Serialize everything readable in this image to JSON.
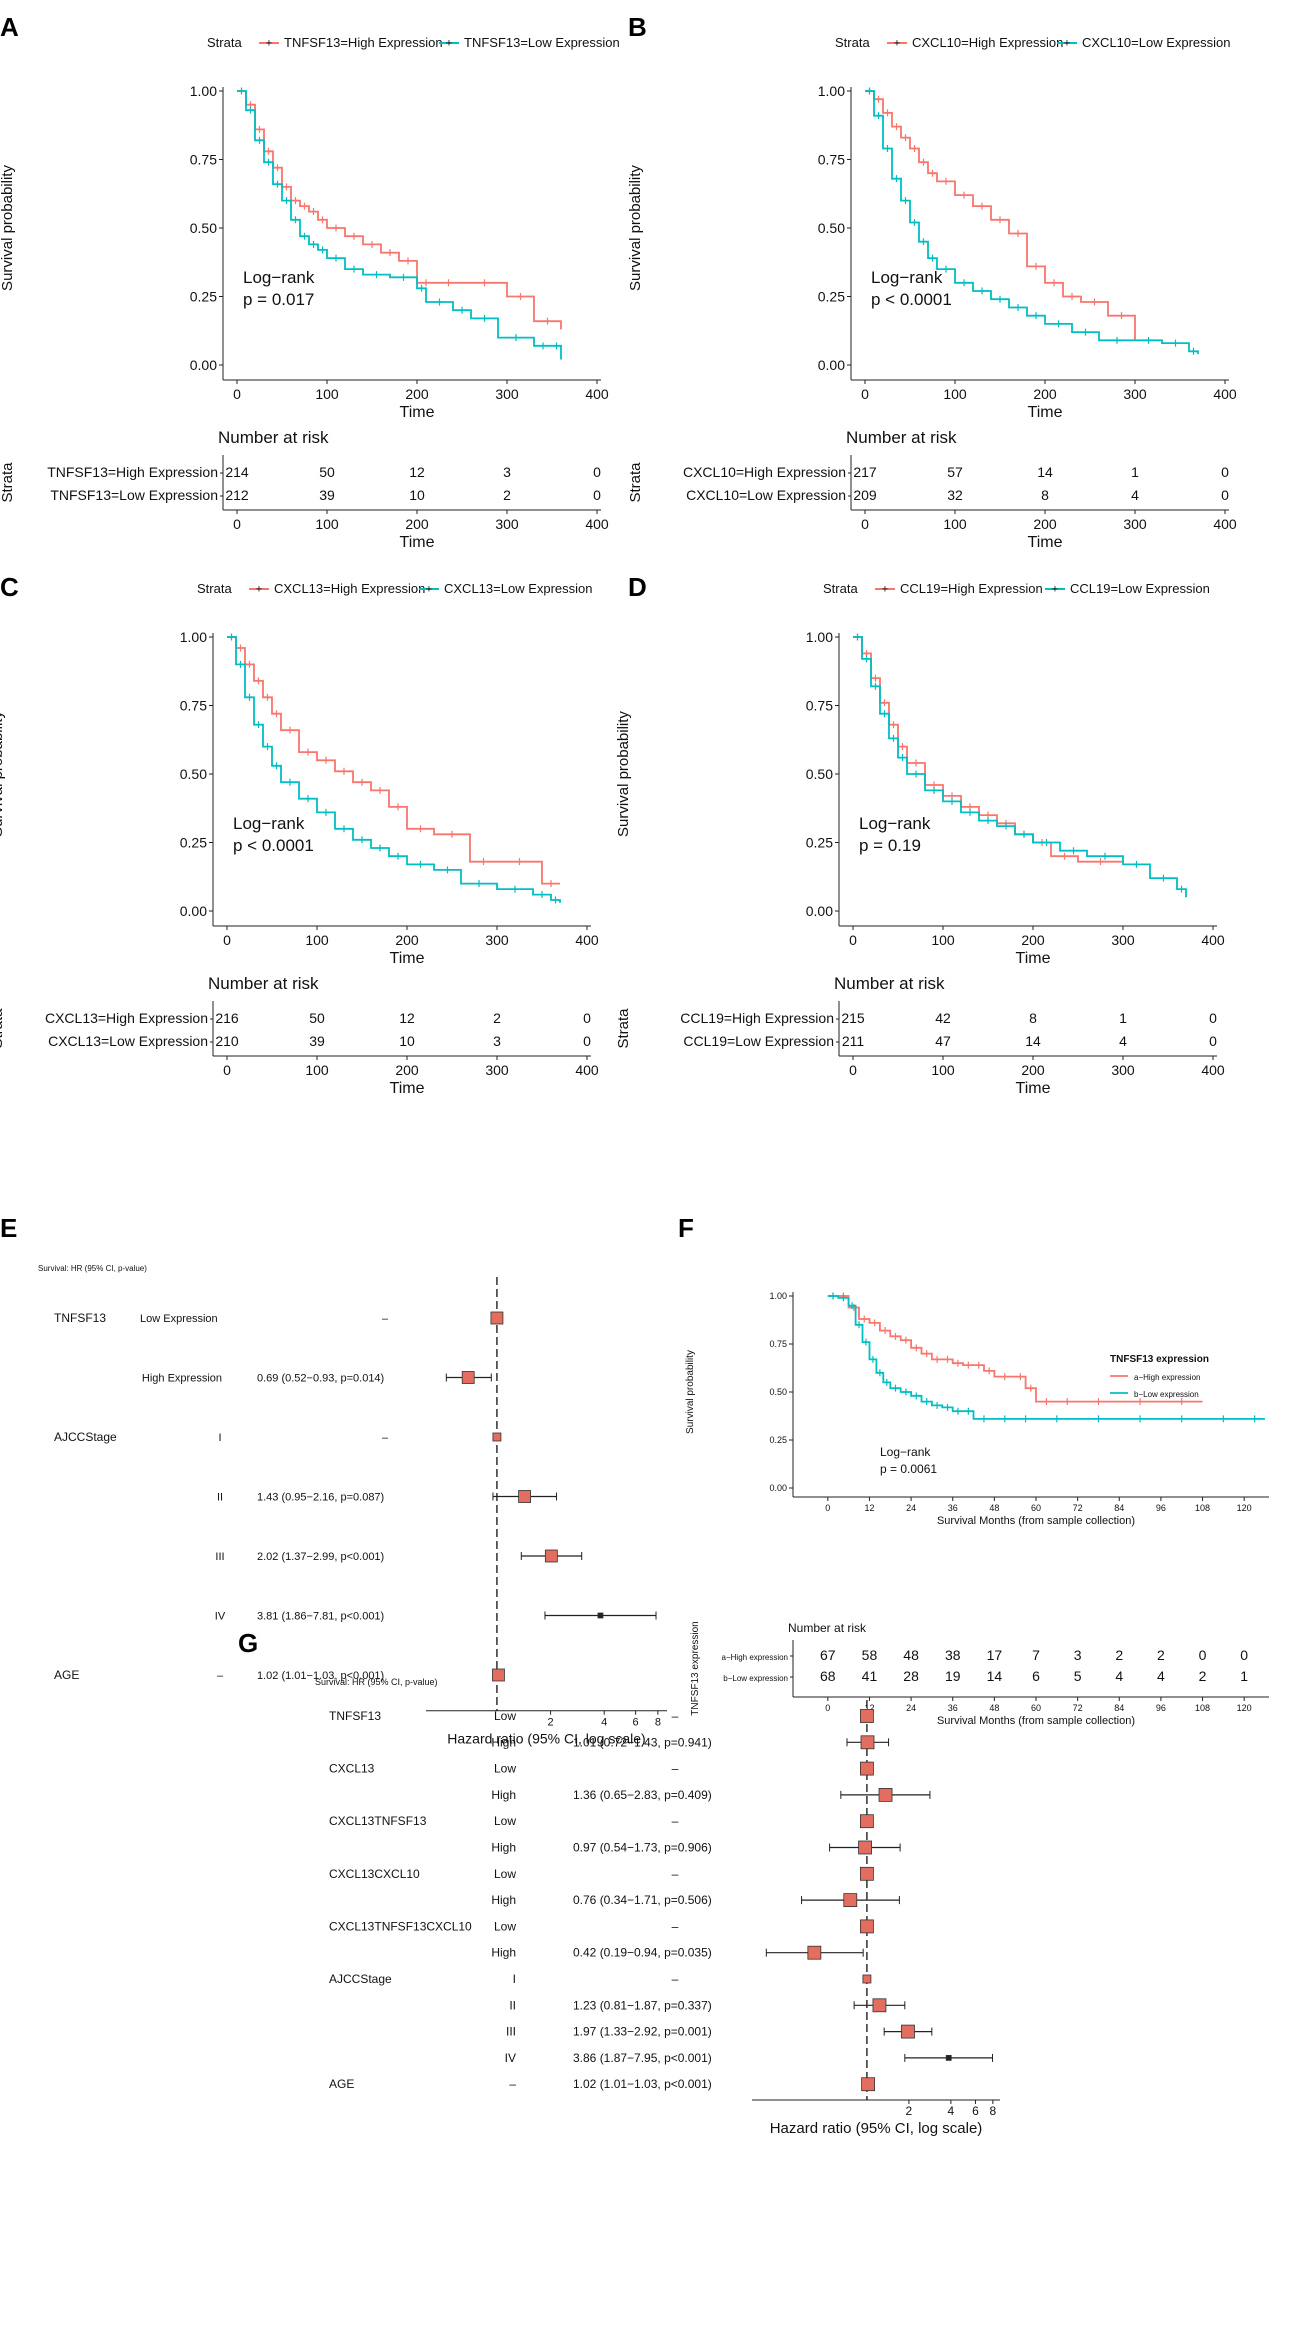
{
  "colors": {
    "high": "#F8766D",
    "low": "#00BFC4",
    "box": "#E36D5F"
  },
  "panel_labels": [
    "A",
    "B",
    "C",
    "D",
    "E",
    "F",
    "G"
  ],
  "chart_data": [
    {
      "panel": "A",
      "type": "line",
      "legend_title": "Strata",
      "series": [
        {
          "name": "TNFSF13=High Expression",
          "color": "#F8766D",
          "x": [
            0,
            10,
            20,
            30,
            40,
            50,
            60,
            70,
            80,
            90,
            100,
            120,
            140,
            160,
            180,
            200,
            220,
            250,
            300,
            330,
            360
          ],
          "y": [
            1.0,
            0.95,
            0.86,
            0.78,
            0.72,
            0.65,
            0.6,
            0.58,
            0.56,
            0.53,
            0.5,
            0.47,
            0.44,
            0.41,
            0.38,
            0.3,
            0.3,
            0.3,
            0.25,
            0.16,
            0.13
          ]
        },
        {
          "name": "TNFSF13=Low Expression",
          "color": "#00BFC4",
          "x": [
            0,
            10,
            20,
            30,
            40,
            50,
            60,
            70,
            80,
            90,
            100,
            120,
            140,
            170,
            200,
            210,
            240,
            260,
            290,
            330,
            350,
            360
          ],
          "y": [
            1.0,
            0.93,
            0.82,
            0.74,
            0.66,
            0.6,
            0.53,
            0.47,
            0.44,
            0.42,
            0.39,
            0.35,
            0.33,
            0.32,
            0.28,
            0.23,
            0.2,
            0.17,
            0.1,
            0.07,
            0.07,
            0.02
          ]
        }
      ],
      "xlabel": "Time",
      "ylabel": "Survival probability",
      "xlim": [
        0,
        400
      ],
      "ylim": [
        0,
        1
      ],
      "xticks": [
        "0",
        "100",
        "200",
        "300",
        "400"
      ],
      "yticks": [
        "0.00",
        "0.25",
        "0.50",
        "0.75",
        "1.00"
      ],
      "annotation": [
        "Log−rank",
        "p = 0.017"
      ],
      "risk_table": {
        "title": "Number at risk",
        "ylabel": "Strata",
        "rows": [
          {
            "label": "TNFSF13=High  Expression",
            "values": [
              "214",
              "50",
              "12",
              "3",
              "0"
            ]
          },
          {
            "label": "TNFSF13=Low  Expression",
            "values": [
              "212",
              "39",
              "10",
              "2",
              "0"
            ]
          }
        ]
      }
    },
    {
      "panel": "B",
      "type": "line",
      "legend_title": "Strata",
      "series": [
        {
          "name": "CXCL10=High Expression",
          "color": "#F8766D",
          "x": [
            0,
            10,
            20,
            30,
            40,
            50,
            60,
            70,
            80,
            100,
            120,
            140,
            160,
            180,
            200,
            220,
            240,
            270,
            300
          ],
          "y": [
            1.0,
            0.97,
            0.92,
            0.87,
            0.83,
            0.79,
            0.74,
            0.7,
            0.67,
            0.62,
            0.58,
            0.53,
            0.48,
            0.36,
            0.3,
            0.25,
            0.23,
            0.18,
            0.09
          ]
        },
        {
          "name": "CXCL10=Low Expression",
          "color": "#00BFC4",
          "x": [
            0,
            10,
            20,
            30,
            40,
            50,
            60,
            70,
            80,
            100,
            120,
            140,
            160,
            180,
            200,
            230,
            260,
            300,
            330,
            360,
            370
          ],
          "y": [
            1.0,
            0.91,
            0.79,
            0.68,
            0.6,
            0.52,
            0.45,
            0.39,
            0.35,
            0.3,
            0.27,
            0.24,
            0.21,
            0.18,
            0.15,
            0.12,
            0.09,
            0.09,
            0.08,
            0.05,
            0.04
          ]
        }
      ],
      "xlabel": "Time",
      "ylabel": "Survival probability",
      "xlim": [
        0,
        400
      ],
      "ylim": [
        0,
        1
      ],
      "xticks": [
        "0",
        "100",
        "200",
        "300",
        "400"
      ],
      "yticks": [
        "0.00",
        "0.25",
        "0.50",
        "0.75",
        "1.00"
      ],
      "annotation": [
        "Log−rank",
        "p < 0.0001"
      ],
      "risk_table": {
        "title": "Number at risk",
        "ylabel": "Strata",
        "rows": [
          {
            "label": "CXCL10=High  Expression",
            "values": [
              "217",
              "57",
              "14",
              "1",
              "0"
            ]
          },
          {
            "label": "CXCL10=Low  Expression",
            "values": [
              "209",
              "32",
              "8",
              "4",
              "0"
            ]
          }
        ]
      }
    },
    {
      "panel": "C",
      "type": "line",
      "legend_title": "Strata",
      "series": [
        {
          "name": "CXCL13=High Expression",
          "color": "#F8766D",
          "x": [
            0,
            10,
            20,
            30,
            40,
            50,
            60,
            80,
            100,
            120,
            140,
            160,
            180,
            200,
            230,
            270,
            300,
            350,
            370
          ],
          "y": [
            1.0,
            0.96,
            0.9,
            0.84,
            0.78,
            0.72,
            0.66,
            0.58,
            0.55,
            0.51,
            0.47,
            0.44,
            0.38,
            0.3,
            0.28,
            0.18,
            0.18,
            0.1,
            0.1
          ]
        },
        {
          "name": "CXCL13=Low Expression",
          "color": "#00BFC4",
          "x": [
            0,
            10,
            20,
            30,
            40,
            50,
            60,
            80,
            100,
            120,
            140,
            160,
            180,
            200,
            230,
            260,
            300,
            340,
            360,
            370
          ],
          "y": [
            1.0,
            0.9,
            0.78,
            0.68,
            0.6,
            0.53,
            0.47,
            0.41,
            0.36,
            0.3,
            0.26,
            0.23,
            0.2,
            0.17,
            0.15,
            0.1,
            0.08,
            0.06,
            0.04,
            0.03
          ]
        }
      ],
      "xlabel": "Time",
      "ylabel": "Survival probability",
      "xlim": [
        0,
        400
      ],
      "ylim": [
        0,
        1
      ],
      "xticks": [
        "0",
        "100",
        "200",
        "300",
        "400"
      ],
      "yticks": [
        "0.00",
        "0.25",
        "0.50",
        "0.75",
        "1.00"
      ],
      "annotation": [
        "Log−rank",
        "p < 0.0001"
      ],
      "risk_table": {
        "title": "Number at risk",
        "ylabel": "Strata",
        "rows": [
          {
            "label": "CXCL13=High  Expression",
            "values": [
              "216",
              "50",
              "12",
              "2",
              "0"
            ]
          },
          {
            "label": "CXCL13=Low  Expression",
            "values": [
              "210",
              "39",
              "10",
              "3",
              "0"
            ]
          }
        ]
      }
    },
    {
      "panel": "D",
      "type": "line",
      "legend_title": "Strata",
      "series": [
        {
          "name": "CCL19=High Expression",
          "color": "#F8766D",
          "x": [
            0,
            10,
            20,
            30,
            40,
            50,
            60,
            80,
            100,
            120,
            140,
            160,
            180,
            200,
            220,
            250,
            300
          ],
          "y": [
            1.0,
            0.94,
            0.85,
            0.76,
            0.68,
            0.6,
            0.54,
            0.46,
            0.42,
            0.38,
            0.35,
            0.32,
            0.28,
            0.25,
            0.2,
            0.18,
            0.18
          ]
        },
        {
          "name": "CCL19=Low Expression",
          "color": "#00BFC4",
          "x": [
            0,
            10,
            20,
            30,
            40,
            50,
            60,
            80,
            100,
            120,
            140,
            160,
            180,
            200,
            230,
            260,
            300,
            330,
            360,
            370
          ],
          "y": [
            1.0,
            0.92,
            0.82,
            0.72,
            0.63,
            0.56,
            0.5,
            0.44,
            0.4,
            0.36,
            0.33,
            0.31,
            0.28,
            0.25,
            0.22,
            0.2,
            0.17,
            0.12,
            0.08,
            0.05
          ]
        }
      ],
      "xlabel": "Time",
      "ylabel": "Survival probability",
      "xlim": [
        0,
        400
      ],
      "ylim": [
        0,
        1
      ],
      "xticks": [
        "0",
        "100",
        "200",
        "300",
        "400"
      ],
      "yticks": [
        "0.00",
        "0.25",
        "0.50",
        "0.75",
        "1.00"
      ],
      "annotation": [
        "Log−rank",
        "p = 0.19"
      ],
      "risk_table": {
        "title": "Number at risk",
        "ylabel": "Strata",
        "rows": [
          {
            "label": "CCL19=High  Expression",
            "values": [
              "215",
              "42",
              "8",
              "1",
              "0"
            ]
          },
          {
            "label": "CCL19=Low  Expression",
            "values": [
              "211",
              "47",
              "14",
              "4",
              "0"
            ]
          }
        ]
      }
    },
    {
      "panel": "E",
      "type": "forest",
      "header": "Survival: HR (95% CI, p-value)",
      "xlabel": "Hazard ratio (95% CI, log scale)",
      "xlim": [
        0.4,
        9
      ],
      "xticks": [
        "2",
        "4",
        "6",
        "8"
      ],
      "xtick_values": [
        2,
        4,
        6,
        8
      ],
      "rows": [
        {
          "group": "TNFSF13",
          "level": "Low Expression",
          "text": "–",
          "hr": 1,
          "lo": null,
          "hi": null,
          "ref": true
        },
        {
          "group": "",
          "level": "High Expression",
          "text": "0.69 (0.52−0.93, p=0.014)",
          "hr": 0.69,
          "lo": 0.52,
          "hi": 0.93
        },
        {
          "group": "AJCCStage",
          "level": "I",
          "text": "–",
          "hr": 1,
          "lo": null,
          "hi": null,
          "ref": true
        },
        {
          "group": "",
          "level": "II",
          "text": "1.43 (0.95−2.16, p=0.087)",
          "hr": 1.43,
          "lo": 0.95,
          "hi": 2.16
        },
        {
          "group": "",
          "level": "III",
          "text": "2.02 (1.37−2.99, p<0.001)",
          "hr": 2.02,
          "lo": 1.37,
          "hi": 2.99
        },
        {
          "group": "",
          "level": "IV",
          "text": "3.81 (1.86−7.81, p<0.001)",
          "hr": 3.81,
          "lo": 1.86,
          "hi": 7.81
        },
        {
          "group": "AGE",
          "level": "–",
          "text": "1.02 (1.01−1.03, p<0.001)",
          "hr": 1.02,
          "lo": 1.01,
          "hi": 1.03
        }
      ]
    },
    {
      "panel": "F",
      "type": "line",
      "legend_title": "TNFSF13 expression",
      "series": [
        {
          "name": "a−High expression",
          "color": "#F8766D",
          "x": [
            0,
            3,
            6,
            9,
            12,
            15,
            18,
            21,
            24,
            27,
            30,
            33,
            36,
            39,
            42,
            45,
            48,
            54,
            57,
            60,
            66,
            72,
            84,
            96,
            108
          ],
          "y": [
            1.0,
            1.0,
            0.94,
            0.88,
            0.86,
            0.82,
            0.79,
            0.77,
            0.73,
            0.7,
            0.67,
            0.67,
            0.65,
            0.64,
            0.64,
            0.61,
            0.58,
            0.58,
            0.52,
            0.45,
            0.45,
            0.45,
            0.45,
            0.45,
            0.45
          ]
        },
        {
          "name": "b−Low expression",
          "color": "#00BFC4",
          "x": [
            0,
            3,
            6,
            8,
            10,
            12,
            14,
            16,
            18,
            21,
            24,
            27,
            30,
            33,
            36,
            39,
            42,
            48,
            54,
            60,
            72,
            84,
            96,
            108,
            120,
            126
          ],
          "y": [
            1.0,
            0.99,
            0.95,
            0.85,
            0.76,
            0.67,
            0.6,
            0.55,
            0.52,
            0.5,
            0.48,
            0.45,
            0.43,
            0.42,
            0.4,
            0.4,
            0.36,
            0.36,
            0.36,
            0.36,
            0.36,
            0.36,
            0.36,
            0.36,
            0.36,
            0.36
          ]
        }
      ],
      "xlabel": "Survival Months (from sample collection)",
      "ylabel": "Survival probability",
      "xlim": [
        -6,
        126
      ],
      "ylim": [
        0,
        1
      ],
      "xticks": [
        "0",
        "12",
        "24",
        "36",
        "48",
        "60",
        "72",
        "84",
        "96",
        "108",
        "120"
      ],
      "yticks": [
        "0.00",
        "0.25",
        "0.50",
        "0.75",
        "1.00"
      ],
      "annotation": [
        "Log−rank",
        "p = 0.0061"
      ],
      "risk_table": {
        "title": "Number at risk",
        "ylabel": "TNFSF13 expression",
        "rows": [
          {
            "label": "a−High expression",
            "values": [
              "67",
              "58",
              "48",
              "38",
              "17",
              "7",
              "3",
              "2",
              "2",
              "0",
              "0"
            ]
          },
          {
            "label": "b−Low expression",
            "values": [
              "68",
              "41",
              "28",
              "19",
              "14",
              "6",
              "5",
              "4",
              "4",
              "2",
              "1"
            ]
          }
        ]
      }
    },
    {
      "panel": "G",
      "type": "forest",
      "header": "Survival: HR (95% CI, p-value)",
      "xlabel": "Hazard ratio (95% CI, log scale)",
      "xlim": [
        0.15,
        9
      ],
      "xticks": [
        "2",
        "4",
        "6",
        "8"
      ],
      "xtick_values": [
        2,
        4,
        6,
        8
      ],
      "rows": [
        {
          "group": "TNFSF13",
          "level": "Low",
          "text": "–",
          "hr": 1,
          "lo": null,
          "hi": null,
          "ref": true
        },
        {
          "group": "",
          "level": "High",
          "text": "1.01 (0.72−1.43, p=0.941)",
          "hr": 1.01,
          "lo": 0.72,
          "hi": 1.43
        },
        {
          "group": "CXCL13",
          "level": "Low",
          "text": "–",
          "hr": 1,
          "lo": null,
          "hi": null,
          "ref": true
        },
        {
          "group": "",
          "level": "High",
          "text": "1.36 (0.65−2.83, p=0.409)",
          "hr": 1.36,
          "lo": 0.65,
          "hi": 2.83
        },
        {
          "group": "CXCL13TNFSF13",
          "level": "Low",
          "text": "–",
          "hr": 1,
          "lo": null,
          "hi": null,
          "ref": true
        },
        {
          "group": "",
          "level": "High",
          "text": "0.97 (0.54−1.73, p=0.906)",
          "hr": 0.97,
          "lo": 0.54,
          "hi": 1.73
        },
        {
          "group": "CXCL13CXCL10",
          "level": "Low",
          "text": "–",
          "hr": 1,
          "lo": null,
          "hi": null,
          "ref": true
        },
        {
          "group": "",
          "level": "High",
          "text": "0.76 (0.34−1.71, p=0.506)",
          "hr": 0.76,
          "lo": 0.34,
          "hi": 1.71
        },
        {
          "group": "CXCL13TNFSF13CXCL10",
          "level": "Low",
          "text": "–",
          "hr": 1,
          "lo": null,
          "hi": null,
          "ref": true
        },
        {
          "group": "",
          "level": "High",
          "text": "0.42 (0.19−0.94, p=0.035)",
          "hr": 0.42,
          "lo": 0.19,
          "hi": 0.94
        },
        {
          "group": "AJCCStage",
          "level": "I",
          "text": "–",
          "hr": 1,
          "lo": null,
          "hi": null,
          "ref": true
        },
        {
          "group": "",
          "level": "II",
          "text": "1.23 (0.81−1.87, p=0.337)",
          "hr": 1.23,
          "lo": 0.81,
          "hi": 1.87
        },
        {
          "group": "",
          "level": "III",
          "text": "1.97 (1.33−2.92, p=0.001)",
          "hr": 1.97,
          "lo": 1.33,
          "hi": 2.92
        },
        {
          "group": "",
          "level": "IV",
          "text": "3.86 (1.87−7.95, p<0.001)",
          "hr": 3.86,
          "lo": 1.87,
          "hi": 7.95
        },
        {
          "group": "AGE",
          "level": "–",
          "text": "1.02 (1.01−1.03, p<0.001)",
          "hr": 1.02,
          "lo": 1.01,
          "hi": 1.03
        }
      ]
    }
  ]
}
